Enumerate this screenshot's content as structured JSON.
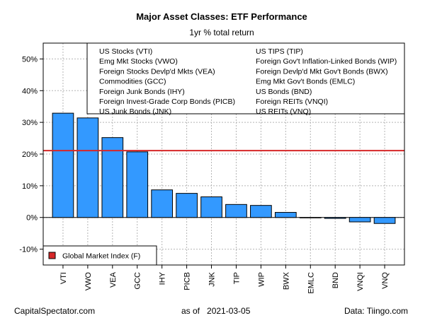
{
  "chart_data": {
    "type": "bar",
    "title": "Major Asset Classes: ETF Performance",
    "subtitle": "1yr % total return",
    "categories": [
      "VTI",
      "VWO",
      "VEA",
      "GCC",
      "IHY",
      "PICB",
      "JNK",
      "TIP",
      "WIP",
      "BWX",
      "EMLC",
      "BND",
      "VNQI",
      "VNQ"
    ],
    "values": [
      32.9,
      31.4,
      25.2,
      20.7,
      8.7,
      7.6,
      6.5,
      4.1,
      3.8,
      1.6,
      0.0,
      -0.3,
      -1.4,
      -1.9
    ],
    "ylim": [
      -15,
      55
    ],
    "yticks": [
      -10,
      0,
      10,
      20,
      30,
      40,
      50
    ],
    "ytick_labels": [
      "-10%",
      "0%",
      "10%",
      "20%",
      "30%",
      "40%",
      "50%"
    ],
    "bar_color": "#3399FF",
    "reference_line": {
      "label": "Global Market Index (F)",
      "value": 21.1,
      "color": "#D62728"
    },
    "grid": true,
    "legend_left": [
      "US Stocks (VTI)",
      "Emg Mkt Stocks (VWO)",
      "Foreign Stocks Devlp'd Mkts (VEA)",
      "Commodities (GCC)",
      "Foreign Junk Bonds (IHY)",
      "Foreign Invest-Grade Corp Bonds (PICB)",
      "US Junk Bonds (JNK)"
    ],
    "legend_right": [
      "US TIPS (TIP)",
      "Foreign Gov't Inflation-Linked Bonds (WIP)",
      "Foreign Devlp'd Mkt Gov't Bonds (BWX)",
      "Emg Mkt Gov't Bonds (EMLC)",
      "US Bonds (BND)",
      "Foreign REITs (VNQI)",
      "US REITs (VNQ)"
    ]
  },
  "footer": {
    "left": "CapitalSpectator.com",
    "center_prefix": "as of",
    "date": "2021-03-05",
    "right": "Data: Tiingo.com"
  }
}
